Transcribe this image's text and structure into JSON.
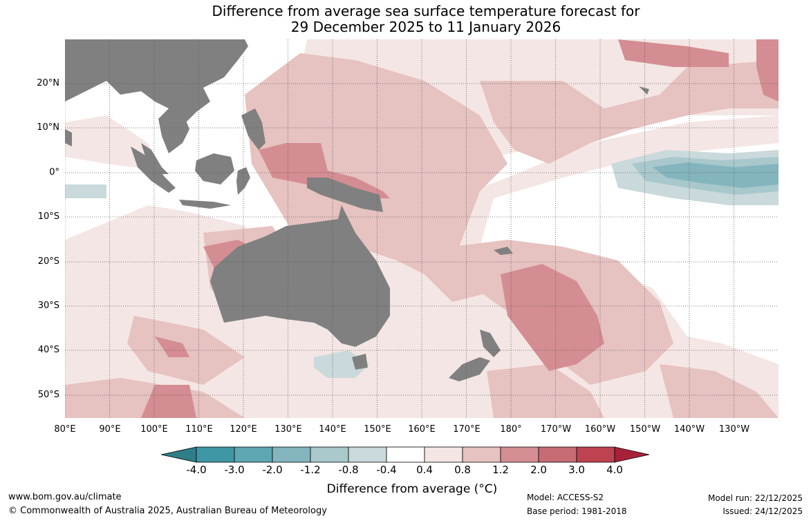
{
  "title": {
    "line1": "Difference from average sea surface temperature forecast for",
    "line2": "29 December 2025 to 11 January 2026"
  },
  "map": {
    "lat_labels": [
      "20°N",
      "10°N",
      "0°",
      "10°S",
      "20°S",
      "30°S",
      "40°S",
      "50°S"
    ],
    "lon_labels": [
      "80°E",
      "90°E",
      "100°E",
      "110°E",
      "120°E",
      "130°E",
      "140°E",
      "150°E",
      "160°E",
      "170°E",
      "180°",
      "170°W",
      "160°W",
      "150°W",
      "140°W",
      "130°W"
    ],
    "land_color": "#808080",
    "ocean_color": "#ffffff"
  },
  "colorbar": {
    "ticks": [
      "-4.0",
      "-3.0",
      "-2.0",
      "-1.2",
      "-0.8",
      "-0.4",
      "0.4",
      "0.8",
      "1.2",
      "2.0",
      "3.0",
      "4.0"
    ],
    "colors": [
      "#3f97a5",
      "#5ea7b3",
      "#84b5bf",
      "#a8c8cc",
      "#cad9db",
      "#ffffff",
      "#f4e6e4",
      "#e6c2c0",
      "#d48d92",
      "#c76b74",
      "#bd4350"
    ],
    "end_low": "#2f7e88",
    "end_high": "#a8203a",
    "label": "Difference from average (°C)"
  },
  "footer": {
    "url": "www.bom.gov.au/climate",
    "copyright": "© Commonwealth of Australia 2025, Australian Bureau of Meteorology",
    "model": "Model: ACCESS-S2",
    "base_period": "Base period: 1981-2018",
    "model_run": "Model run: 22/12/2025",
    "issued": "Issued: 24/12/2025"
  }
}
